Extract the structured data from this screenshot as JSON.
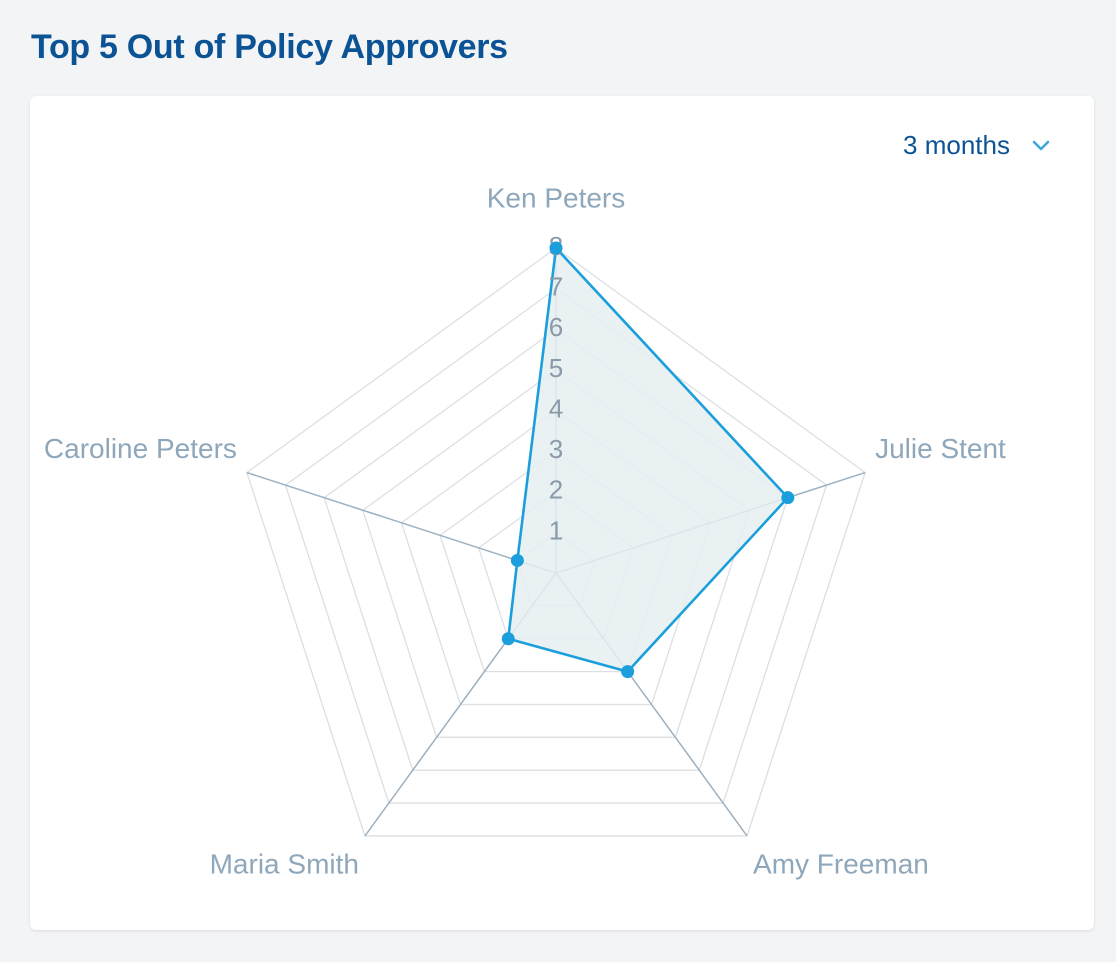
{
  "page": {
    "title": "Top 5 Out of Policy Approvers"
  },
  "range_select": {
    "value": "3 months",
    "icon": "chevron-down-icon"
  },
  "colors": {
    "title": "#0b5394",
    "series": "#1a9fdc",
    "fill": "#e6eef1",
    "grid": "#dcdfe3",
    "axis": "#9bb0c0",
    "axis_label": "#8fa7bb"
  },
  "chart_data": {
    "type": "radar",
    "title": "Top 5 Out of Policy Approvers",
    "categories": [
      "Ken Peters",
      "Julie Stent",
      "Amy Freeman",
      "Maria Smith",
      "Caroline Peters"
    ],
    "series": [
      {
        "values": [
          8,
          6,
          3,
          2,
          1
        ]
      }
    ],
    "rlim": [
      0,
      8
    ],
    "ticks": [
      1,
      2,
      3,
      4,
      5,
      6,
      7,
      8
    ],
    "grid": true
  }
}
